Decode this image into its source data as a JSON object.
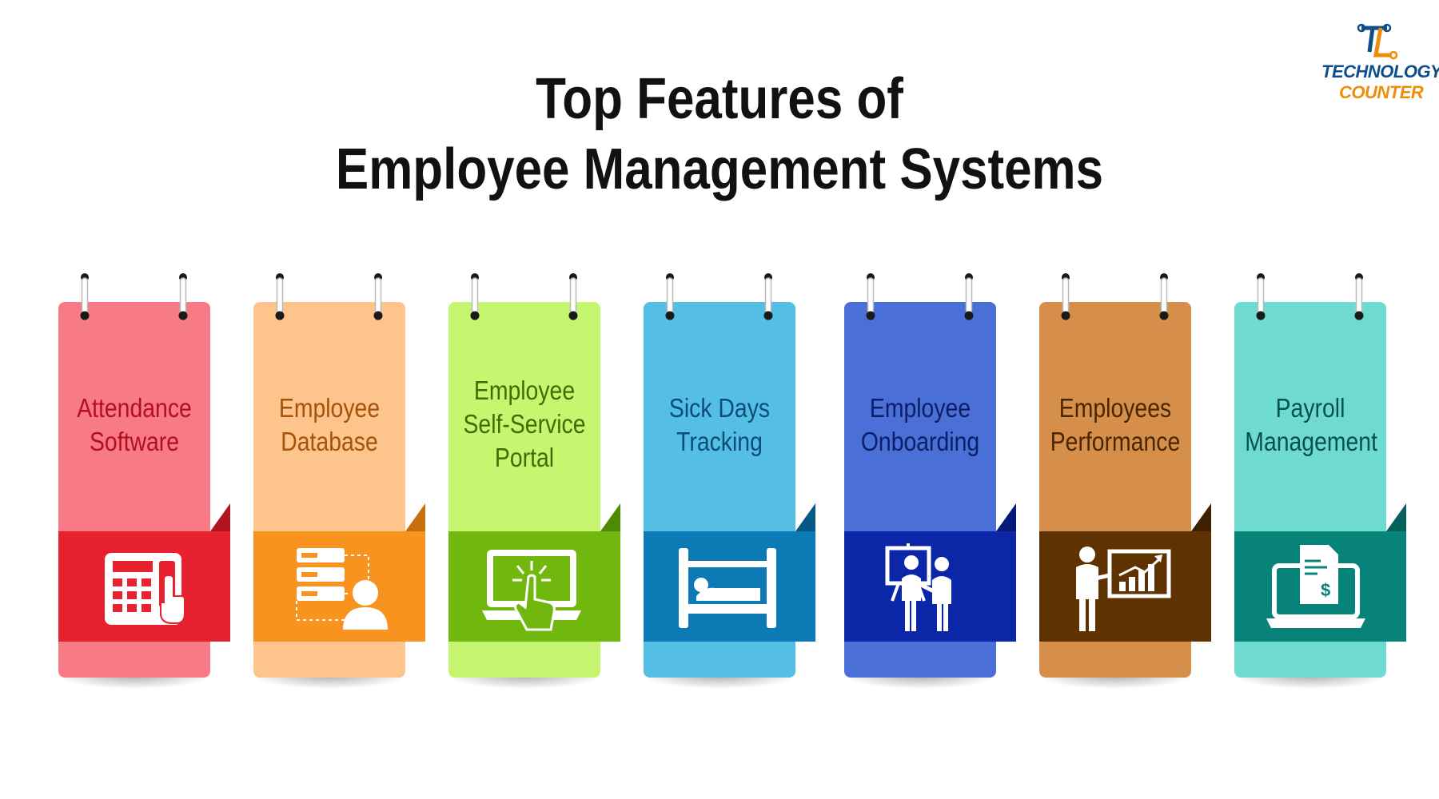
{
  "title": {
    "line1": "Top Features of",
    "line2": "Employee Management Systems"
  },
  "logo": {
    "word1": "TECHNOLOGY",
    "word2": "COUNTER"
  },
  "cards": [
    {
      "lines": [
        "Attendance",
        "Software"
      ],
      "icon": "attendance-terminal-icon",
      "colors": {
        "body": "#f77a86",
        "band": "#e8212f",
        "fold": "#b0141f",
        "text": "#b40f1d"
      }
    },
    {
      "lines": [
        "Employee",
        "Database"
      ],
      "icon": "database-user-icon",
      "colors": {
        "body": "#fdc48b",
        "band": "#f7931e",
        "fold": "#c76f0c",
        "text": "#a5520c"
      }
    },
    {
      "lines": [
        "Employee",
        "Self-Service",
        "Portal"
      ],
      "icon": "touch-screen-icon",
      "colors": {
        "body": "#c6f56f",
        "band": "#71b80e",
        "fold": "#4d8a06",
        "text": "#3c6e05"
      }
    },
    {
      "lines": [
        "Sick Days",
        "Tracking"
      ],
      "icon": "bed-icon",
      "colors": {
        "body": "#55bee5",
        "band": "#0c7bb5",
        "fold": "#075985",
        "text": "#0c4d77"
      }
    },
    {
      "lines": [
        "Employee",
        "Onboarding"
      ],
      "icon": "presentation-icon",
      "colors": {
        "body": "#4a6fd6",
        "band": "#0b27a8",
        "fold": "#061a7a",
        "text": "#0a1f66"
      }
    },
    {
      "lines": [
        "Employees",
        "Performance"
      ],
      "icon": "performance-chart-icon",
      "colors": {
        "body": "#d68f4b",
        "band": "#5e3201",
        "fold": "#3f2100",
        "text": "#4a2600"
      }
    },
    {
      "lines": [
        "Payroll",
        "Management"
      ],
      "icon": "payroll-laptop-icon",
      "colors": {
        "body": "#6fdbd0",
        "band": "#07837a",
        "fold": "#05625b",
        "text": "#05524c"
      }
    }
  ]
}
